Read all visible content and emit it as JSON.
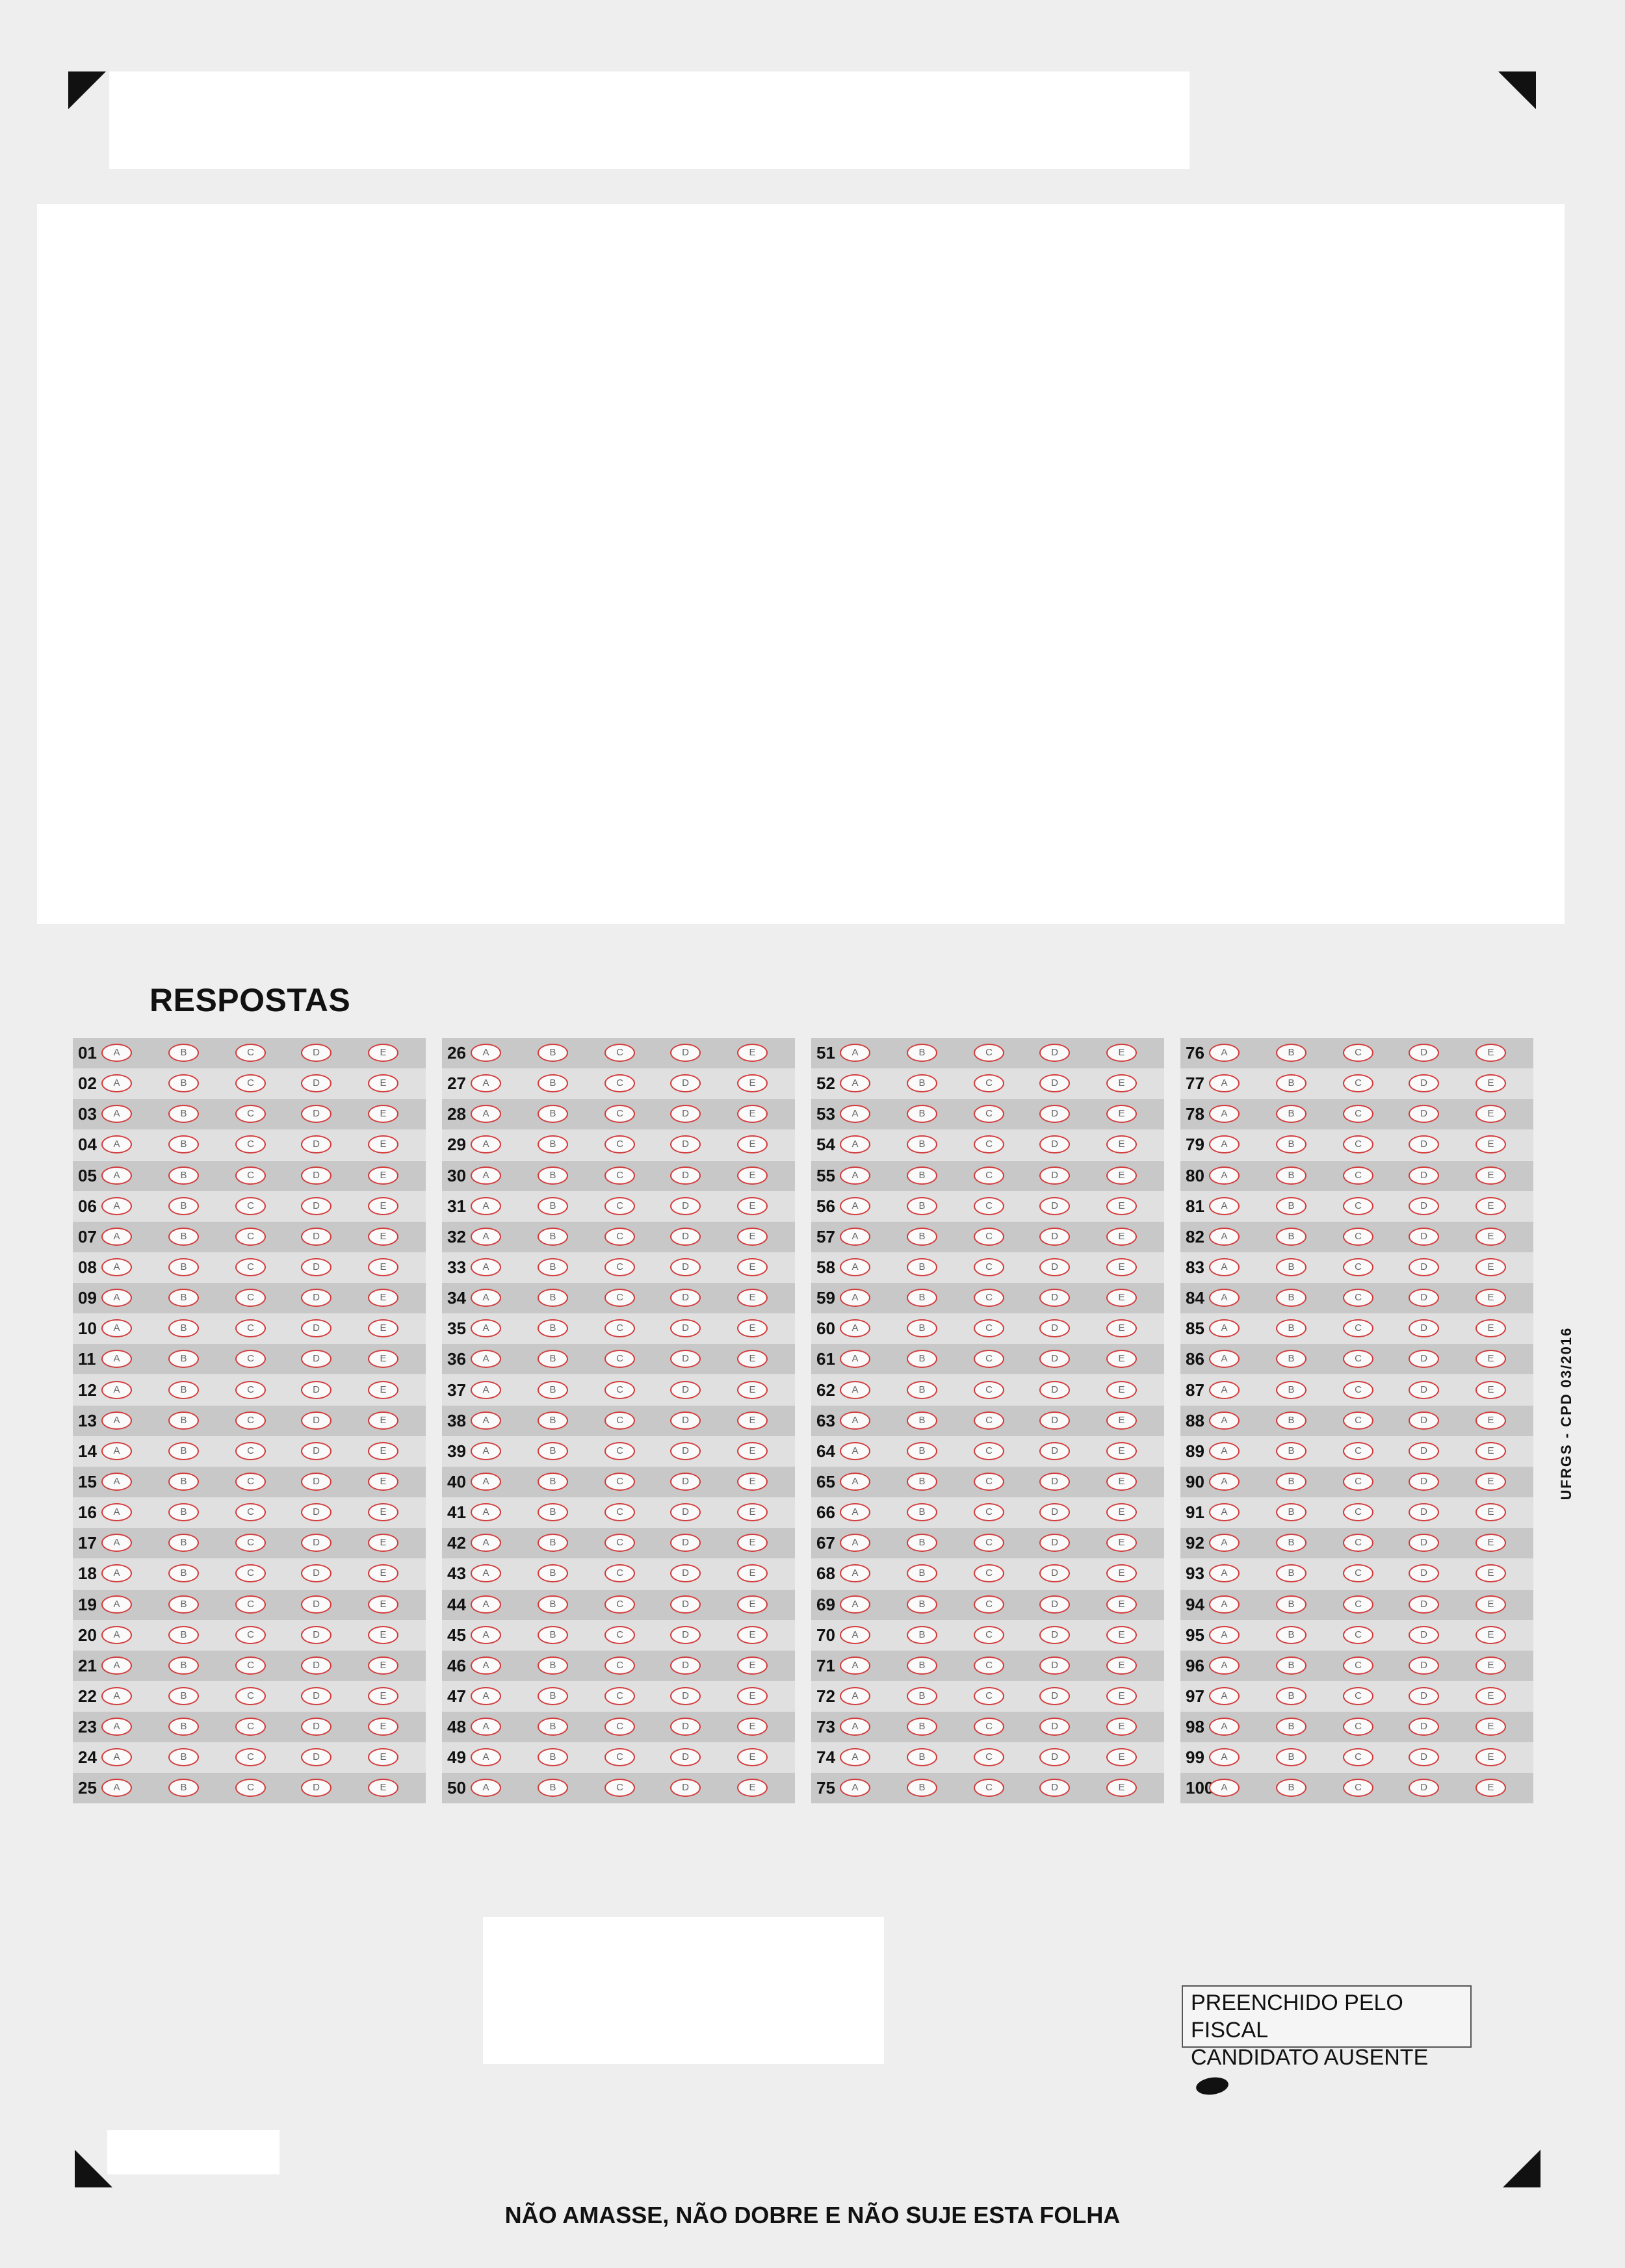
{
  "sheet": {
    "section_title": "RESPOSTAS",
    "options": [
      "A",
      "B",
      "C",
      "D",
      "E"
    ],
    "columns": [
      {
        "questions": [
          "01",
          "02",
          "03",
          "04",
          "05",
          "06",
          "07",
          "08",
          "09",
          "10",
          "11",
          "12",
          "13",
          "14",
          "15",
          "16",
          "17",
          "18",
          "19",
          "20",
          "21",
          "22",
          "23",
          "24",
          "25"
        ]
      },
      {
        "questions": [
          "26",
          "27",
          "28",
          "29",
          "30",
          "31",
          "32",
          "33",
          "34",
          "35",
          "36",
          "37",
          "38",
          "39",
          "40",
          "41",
          "42",
          "43",
          "44",
          "45",
          "46",
          "47",
          "48",
          "49",
          "50"
        ]
      },
      {
        "questions": [
          "51",
          "52",
          "53",
          "54",
          "55",
          "56",
          "57",
          "58",
          "59",
          "60",
          "61",
          "62",
          "63",
          "64",
          "65",
          "66",
          "67",
          "68",
          "69",
          "70",
          "71",
          "72",
          "73",
          "74",
          "75"
        ]
      },
      {
        "questions": [
          "76",
          "77",
          "78",
          "79",
          "80",
          "81",
          "82",
          "83",
          "84",
          "85",
          "86",
          "87",
          "88",
          "89",
          "90",
          "91",
          "92",
          "93",
          "94",
          "95",
          "96",
          "97",
          "98",
          "99",
          "100"
        ]
      }
    ],
    "side_code": "UFRGS - CPD 03/2016",
    "fiscal_box": {
      "line1": "PREENCHIDO PELO FISCAL",
      "line2": "CANDIDATO AUSENTE"
    },
    "footer_text": "NÃO AMASSE, NÃO DOBRE E NÃO SUJE ESTA FOLHA"
  }
}
